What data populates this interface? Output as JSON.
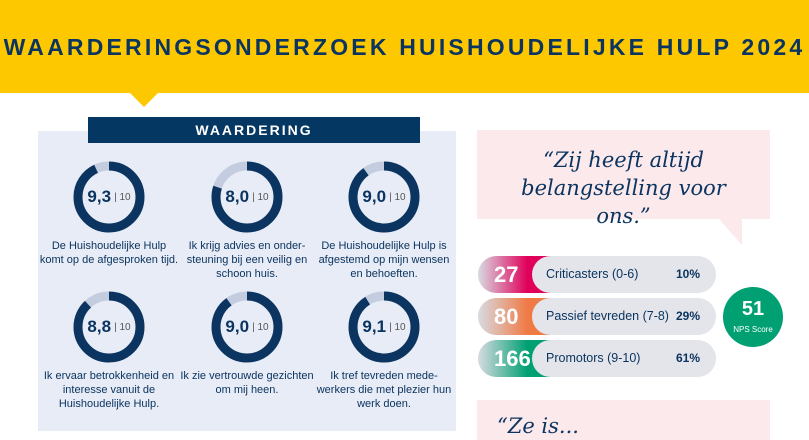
{
  "header": {
    "title": "WAARDERINGSONDERZOEK HUISHOUDELIJKE HULP 2024",
    "color": "#fdc800"
  },
  "waardering": {
    "title": "WAARDERING",
    "max_label": "| 10",
    "items": [
      {
        "score": "9,3",
        "value": 9.3,
        "label": "De Huishoudelijke Hulp komt op de afgesproken tijd."
      },
      {
        "score": "8,0",
        "value": 8.0,
        "label": "Ik krijg advies en onder-steuning bij een veilig en schoon huis."
      },
      {
        "score": "9,0",
        "value": 9.0,
        "label": "De Huishoudelijke Hulp is afgestemd op mijn wensen en behoeften."
      },
      {
        "score": "8,8",
        "value": 8.8,
        "label": "Ik ervaar betrokkenheid en interesse vanuit de Huishoudelijke Hulp."
      },
      {
        "score": "9,0",
        "value": 9.0,
        "label": "Ik zie vertrouwde gezichten om mij heen."
      },
      {
        "score": "9,1",
        "value": 9.1,
        "label": "Ik tref tevreden mede-werkers die met plezier hun werk doen."
      }
    ]
  },
  "quotes": [
    "“Zij heeft altijd belangstelling voor ons.”",
    "“Ze is..."
  ],
  "nps": {
    "rows": [
      {
        "count": "27",
        "label": "Criticasters (0-6)",
        "pct": "10%",
        "color": "#e0005a"
      },
      {
        "count": "80",
        "label": "Passief tevreden (7-8)",
        "pct": "29%",
        "color": "#f07a45"
      },
      {
        "count": "166",
        "label": "Promotors (9-10)",
        "pct": "61%",
        "color": "#00a073"
      }
    ],
    "score": "51",
    "score_label": "NPS Score"
  }
}
